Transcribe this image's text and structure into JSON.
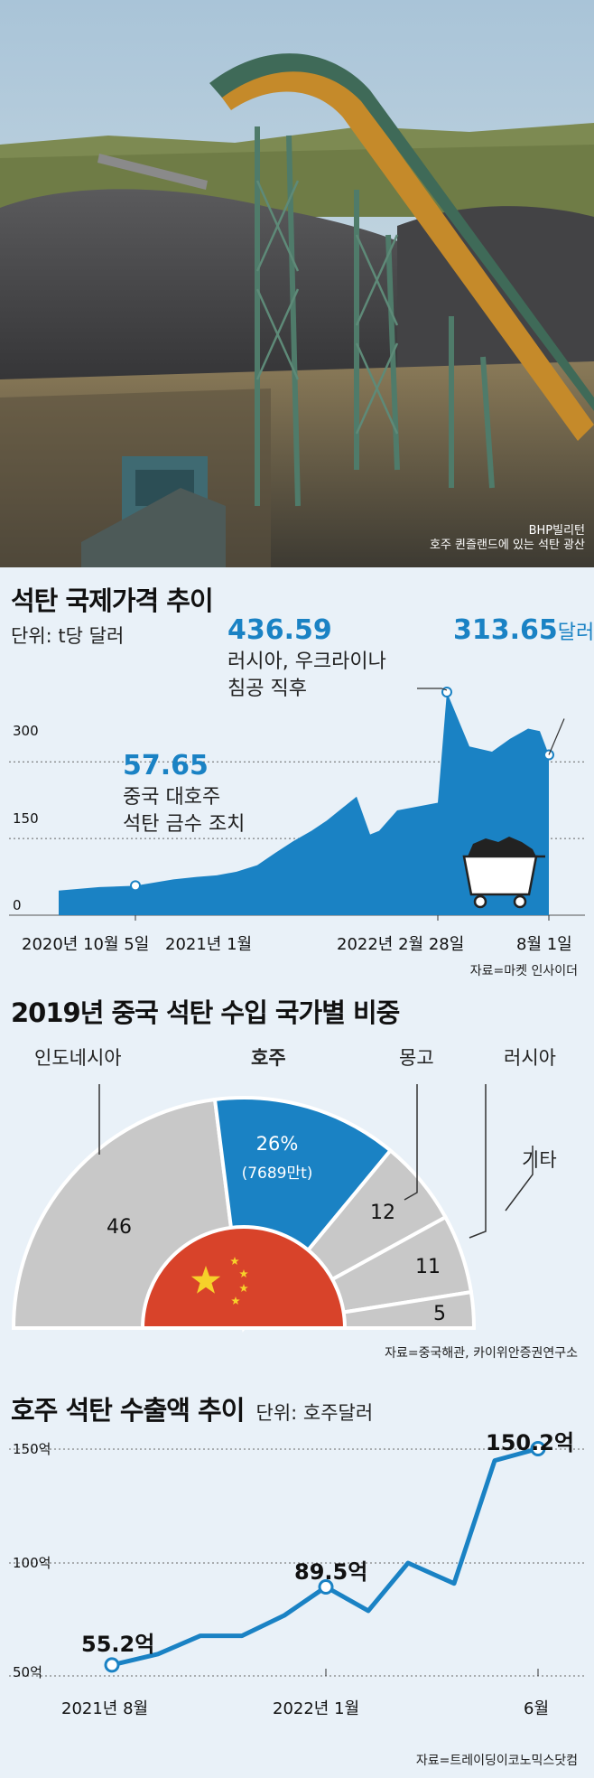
{
  "photo": {
    "credit_line1": "BHP빌리턴",
    "credit_line2": "호주 퀸즐랜드에 있는 석탄 광산"
  },
  "colors": {
    "accent": "#1a82c4",
    "background": "#e9f1f8",
    "china_red": "#d8432a",
    "gray_slice": "#c8c8c8"
  },
  "chart1": {
    "title": "석탄 국제가격 추이",
    "unit": "단위: t당 달러",
    "y_ticks": [
      "300",
      "150",
      "0"
    ],
    "x_labels": [
      "2020년 10월 5일",
      "2021년 1월",
      "2022년 2월 28일",
      "8월 1일"
    ],
    "annotations": {
      "low_value": "57.65",
      "low_text1": "중국 대호주",
      "low_text2": "석탄 금수 조치",
      "peak_value": "436.59",
      "peak_text1": "러시아, 우크라이나",
      "peak_text2": "침공 직후",
      "last_value": "313.65",
      "last_unit": "달러"
    },
    "source": "자료=마켓 인사이더"
  },
  "chart2": {
    "title": "2019년 중국 석탄 수입 국가별 비중",
    "labels": {
      "indonesia": "인도네시아",
      "australia": "호주",
      "mongolia": "몽고",
      "russia": "러시아",
      "other": "기타"
    },
    "values": {
      "indonesia": "46",
      "australia": "26%",
      "australia_sub": "(7689만t)",
      "mongolia": "12",
      "russia": "11",
      "other": "5"
    },
    "source": "자료=중국해관, 카이위안증권연구소"
  },
  "chart3": {
    "title": "호주 석탄 수출액 추이",
    "unit": "단위: 호주달러",
    "y_ticks": [
      "150억",
      "100억",
      "50억"
    ],
    "x_labels": [
      "2021년 8월",
      "2022년 1월",
      "6월"
    ],
    "labels": {
      "start": "55.2억",
      "mid": "89.5억",
      "end": "150.2억"
    },
    "source": "자료=트레이딩이코노믹스닷컴"
  },
  "chart_data": [
    {
      "type": "area",
      "title": "석탄 국제가격 추이",
      "ylabel": "t당 달러",
      "ylim": [
        0,
        450
      ],
      "x": [
        "2020-10-05",
        "2020-11",
        "2020-12",
        "2021-01",
        "2021-02",
        "2021-03",
        "2021-04",
        "2021-05",
        "2021-06",
        "2021-07",
        "2021-08",
        "2021-09",
        "2021-10",
        "2021-11",
        "2021-12",
        "2022-01",
        "2022-02",
        "2022-02-28",
        "2022-03",
        "2022-04",
        "2022-05",
        "2022-06",
        "2022-07",
        "2022-08-01"
      ],
      "values": [
        48,
        55,
        57.65,
        70,
        75,
        78,
        85,
        98,
        122,
        145,
        165,
        185,
        232,
        158,
        165,
        205,
        220,
        436.59,
        330,
        320,
        345,
        365,
        360,
        313.65
      ]
    },
    {
      "type": "pie",
      "title": "2019년 중국 석탄 수입 국가별 비중",
      "categories": [
        "인도네시아",
        "호주",
        "몽고",
        "러시아",
        "기타"
      ],
      "values": [
        46,
        26,
        12,
        11,
        5
      ]
    },
    {
      "type": "line",
      "title": "호주 석탄 수출액 추이",
      "ylabel": "호주달러",
      "ylim": [
        40,
        160
      ],
      "x": [
        "2021-08",
        "2021-09",
        "2021-10",
        "2021-11",
        "2021-12",
        "2022-01",
        "2022-02",
        "2022-03",
        "2022-04",
        "2022-05",
        "2022-06"
      ],
      "values": [
        55.2,
        60,
        68,
        68,
        77,
        89.5,
        79,
        100,
        91,
        145,
        150.2
      ]
    }
  ]
}
